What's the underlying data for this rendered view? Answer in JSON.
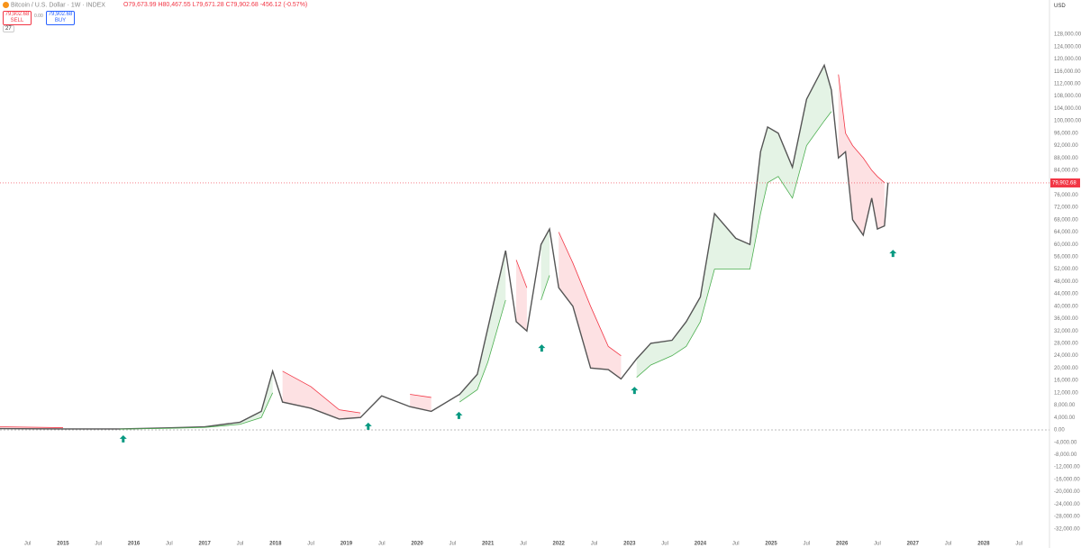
{
  "header": {
    "symbol": "Bitcoin / U.S. Dollar · 1W · INDEX",
    "ohlc": "O79,673.99 H80,467.55 L79,671.28 C79,902.68 -456.12 (-0.57%)",
    "sell_price": "79,902.68",
    "sell": "SELL",
    "spread": "0.00",
    "buy_price": "79,902.68",
    "buy": "BUY",
    "indicators": "27",
    "currency": "USD"
  },
  "chart_data": {
    "type": "line",
    "x": [
      2014.11,
      2015,
      2015.8,
      2016.5,
      2017,
      2017.5,
      2017.8,
      2017.96,
      2018.1,
      2018.5,
      2018.9,
      2019.2,
      2019.5,
      2019.9,
      2020.2,
      2020.6,
      2020.85,
      2021.0,
      2021.25,
      2021.4,
      2021.55,
      2021.75,
      2021.87,
      2022.0,
      2022.2,
      2022.45,
      2022.7,
      2022.88,
      2023.1,
      2023.3,
      2023.6,
      2023.8,
      2024.0,
      2024.2,
      2024.5,
      2024.7,
      2024.85,
      2024.95,
      2025.1,
      2025.3,
      2025.5,
      2025.75,
      2025.85,
      2025.95,
      2026.05,
      2026.15,
      2026.3,
      2026.42,
      2026.5,
      2026.6,
      2026.65
    ],
    "series": [
      {
        "color": "#555555",
        "values": [
          400,
          300,
          300,
          650,
          1000,
          2500,
          6000,
          19000,
          9000,
          7000,
          3500,
          4000,
          11000,
          7500,
          6000,
          11500,
          18000,
          33000,
          58000,
          35000,
          32000,
          60000,
          65000,
          46000,
          40000,
          20000,
          19500,
          16500,
          23000,
          28000,
          29000,
          35000,
          43000,
          70000,
          62000,
          60000,
          90000,
          98000,
          96000,
          85000,
          107000,
          118000,
          110000,
          88000,
          90000,
          68000,
          63000,
          75000,
          65000,
          66000,
          80000
        ]
      },
      {
        "color": "#4caf50",
        "values": [
          null,
          null,
          250,
          500,
          800,
          1800,
          4000,
          12000,
          null,
          null,
          null,
          null,
          8000,
          null,
          null,
          9000,
          13000,
          22000,
          42000,
          null,
          null,
          42000,
          50000,
          null,
          null,
          null,
          null,
          null,
          17000,
          21000,
          24000,
          27000,
          35000,
          52000,
          52000,
          52000,
          70000,
          80000,
          82000,
          75000,
          92000,
          100000,
          103000,
          null,
          null,
          null,
          null,
          null,
          null,
          null,
          60000
        ]
      },
      {
        "color": "#f23645",
        "values": [
          1000,
          700,
          null,
          null,
          null,
          null,
          null,
          null,
          19000,
          14000,
          6500,
          5500,
          null,
          11500,
          10500,
          null,
          null,
          null,
          null,
          55000,
          46000,
          null,
          null,
          64000,
          54000,
          40000,
          27000,
          24000,
          null,
          null,
          null,
          null,
          null,
          null,
          null,
          null,
          null,
          null,
          null,
          null,
          null,
          null,
          null,
          115000,
          96000,
          92000,
          88000,
          84000,
          82000,
          80000,
          null
        ]
      }
    ],
    "signals": {
      "color": "#089981",
      "x": [
        2015.85,
        2019.31,
        2020.59,
        2021.76,
        2023.07,
        2026.72
      ],
      "y": [
        -2900,
        1200,
        4700,
        26500,
        12800,
        57100
      ]
    },
    "price_label": {
      "value": 79902.68,
      "label": "79,902.68"
    },
    "xlim": [
      2014.11,
      2028.93
    ],
    "ylim": [
      -35300,
      139100
    ],
    "xticks": [
      {
        "value": 2014.5,
        "label": "Jul"
      },
      2015,
      {
        "value": 2015.5,
        "label": "Jul"
      },
      2016,
      {
        "value": 2016.5,
        "label": "Jul"
      },
      2017,
      {
        "value": 2017.5,
        "label": "Jul"
      },
      2018,
      {
        "value": 2018.5,
        "label": "Jul"
      },
      2019,
      {
        "value": 2019.5,
        "label": "Jul"
      },
      2020,
      {
        "value": 2020.5,
        "label": "Jul"
      },
      2021,
      {
        "value": 2021.5,
        "label": "Jul"
      },
      2022,
      {
        "value": 2022.5,
        "label": "Jul"
      },
      2023,
      {
        "value": 2023.5,
        "label": "Jul"
      },
      2024,
      {
        "value": 2024.5,
        "label": "Jul"
      },
      2025,
      {
        "value": 2025.5,
        "label": "Jul"
      },
      2026,
      {
        "value": 2026.5,
        "label": "Jul"
      },
      2027,
      {
        "value": 2027.5,
        "label": "Jul"
      },
      2028,
      {
        "value": 2028.5,
        "label": "Jul"
      }
    ],
    "yticks": [
      {
        "value": 128000,
        "label": "128,000.00"
      },
      {
        "value": 124000,
        "label": "124,000.00"
      },
      {
        "value": 120000,
        "label": "120,000.00"
      },
      {
        "value": 116000,
        "label": "116,000.00"
      },
      {
        "value": 112000,
        "label": "112,000.00"
      },
      {
        "value": 108000,
        "label": "108,000.00"
      },
      {
        "value": 104000,
        "label": "104,000.00"
      },
      {
        "value": 100000,
        "label": "100,000.00"
      },
      {
        "value": 96000,
        "label": "96,000.00"
      },
      {
        "value": 92000,
        "label": "92,000.00"
      },
      {
        "value": 88000,
        "label": "88,000.00"
      },
      {
        "value": 84000,
        "label": "84,000.00"
      },
      {
        "value": 76000,
        "label": "76,000.00"
      },
      {
        "value": 72000,
        "label": "72,000.00"
      },
      {
        "value": 68000,
        "label": "68,000.00"
      },
      {
        "value": 64000,
        "label": "64,000.00"
      },
      {
        "value": 60000,
        "label": "60,000.00"
      },
      {
        "value": 56000,
        "label": "56,000.00"
      },
      {
        "value": 52000,
        "label": "52,000.00"
      },
      {
        "value": 48000,
        "label": "48,000.00"
      },
      {
        "value": 44000,
        "label": "44,000.00"
      },
      {
        "value": 40000,
        "label": "40,000.00"
      },
      {
        "value": 36000,
        "label": "36,000.00"
      },
      {
        "value": 32000,
        "label": "32,000.00"
      },
      {
        "value": 28000,
        "label": "28,000.00"
      },
      {
        "value": 24000,
        "label": "24,000.00"
      },
      {
        "value": 20000,
        "label": "20,000.00"
      },
      {
        "value": 16000,
        "label": "16,000.00"
      },
      {
        "value": 12000,
        "label": "12,000.00"
      },
      {
        "value": 8000,
        "label": "8,000.00"
      },
      {
        "value": 4000,
        "label": "4,000.00"
      },
      {
        "value": 0,
        "label": "0.00"
      },
      {
        "value": -4000,
        "label": "-4,000.00"
      },
      {
        "value": -8000,
        "label": "-8,000.00"
      },
      {
        "value": -12000,
        "label": "-12,000.00"
      },
      {
        "value": -16000,
        "label": "-16,000.00"
      },
      {
        "value": -20000,
        "label": "-20,000.00"
      },
      {
        "value": -24000,
        "label": "-24,000.00"
      },
      {
        "value": -28000,
        "label": "-28,000.00"
      },
      {
        "value": -32000,
        "label": "-32,000.00"
      }
    ]
  }
}
